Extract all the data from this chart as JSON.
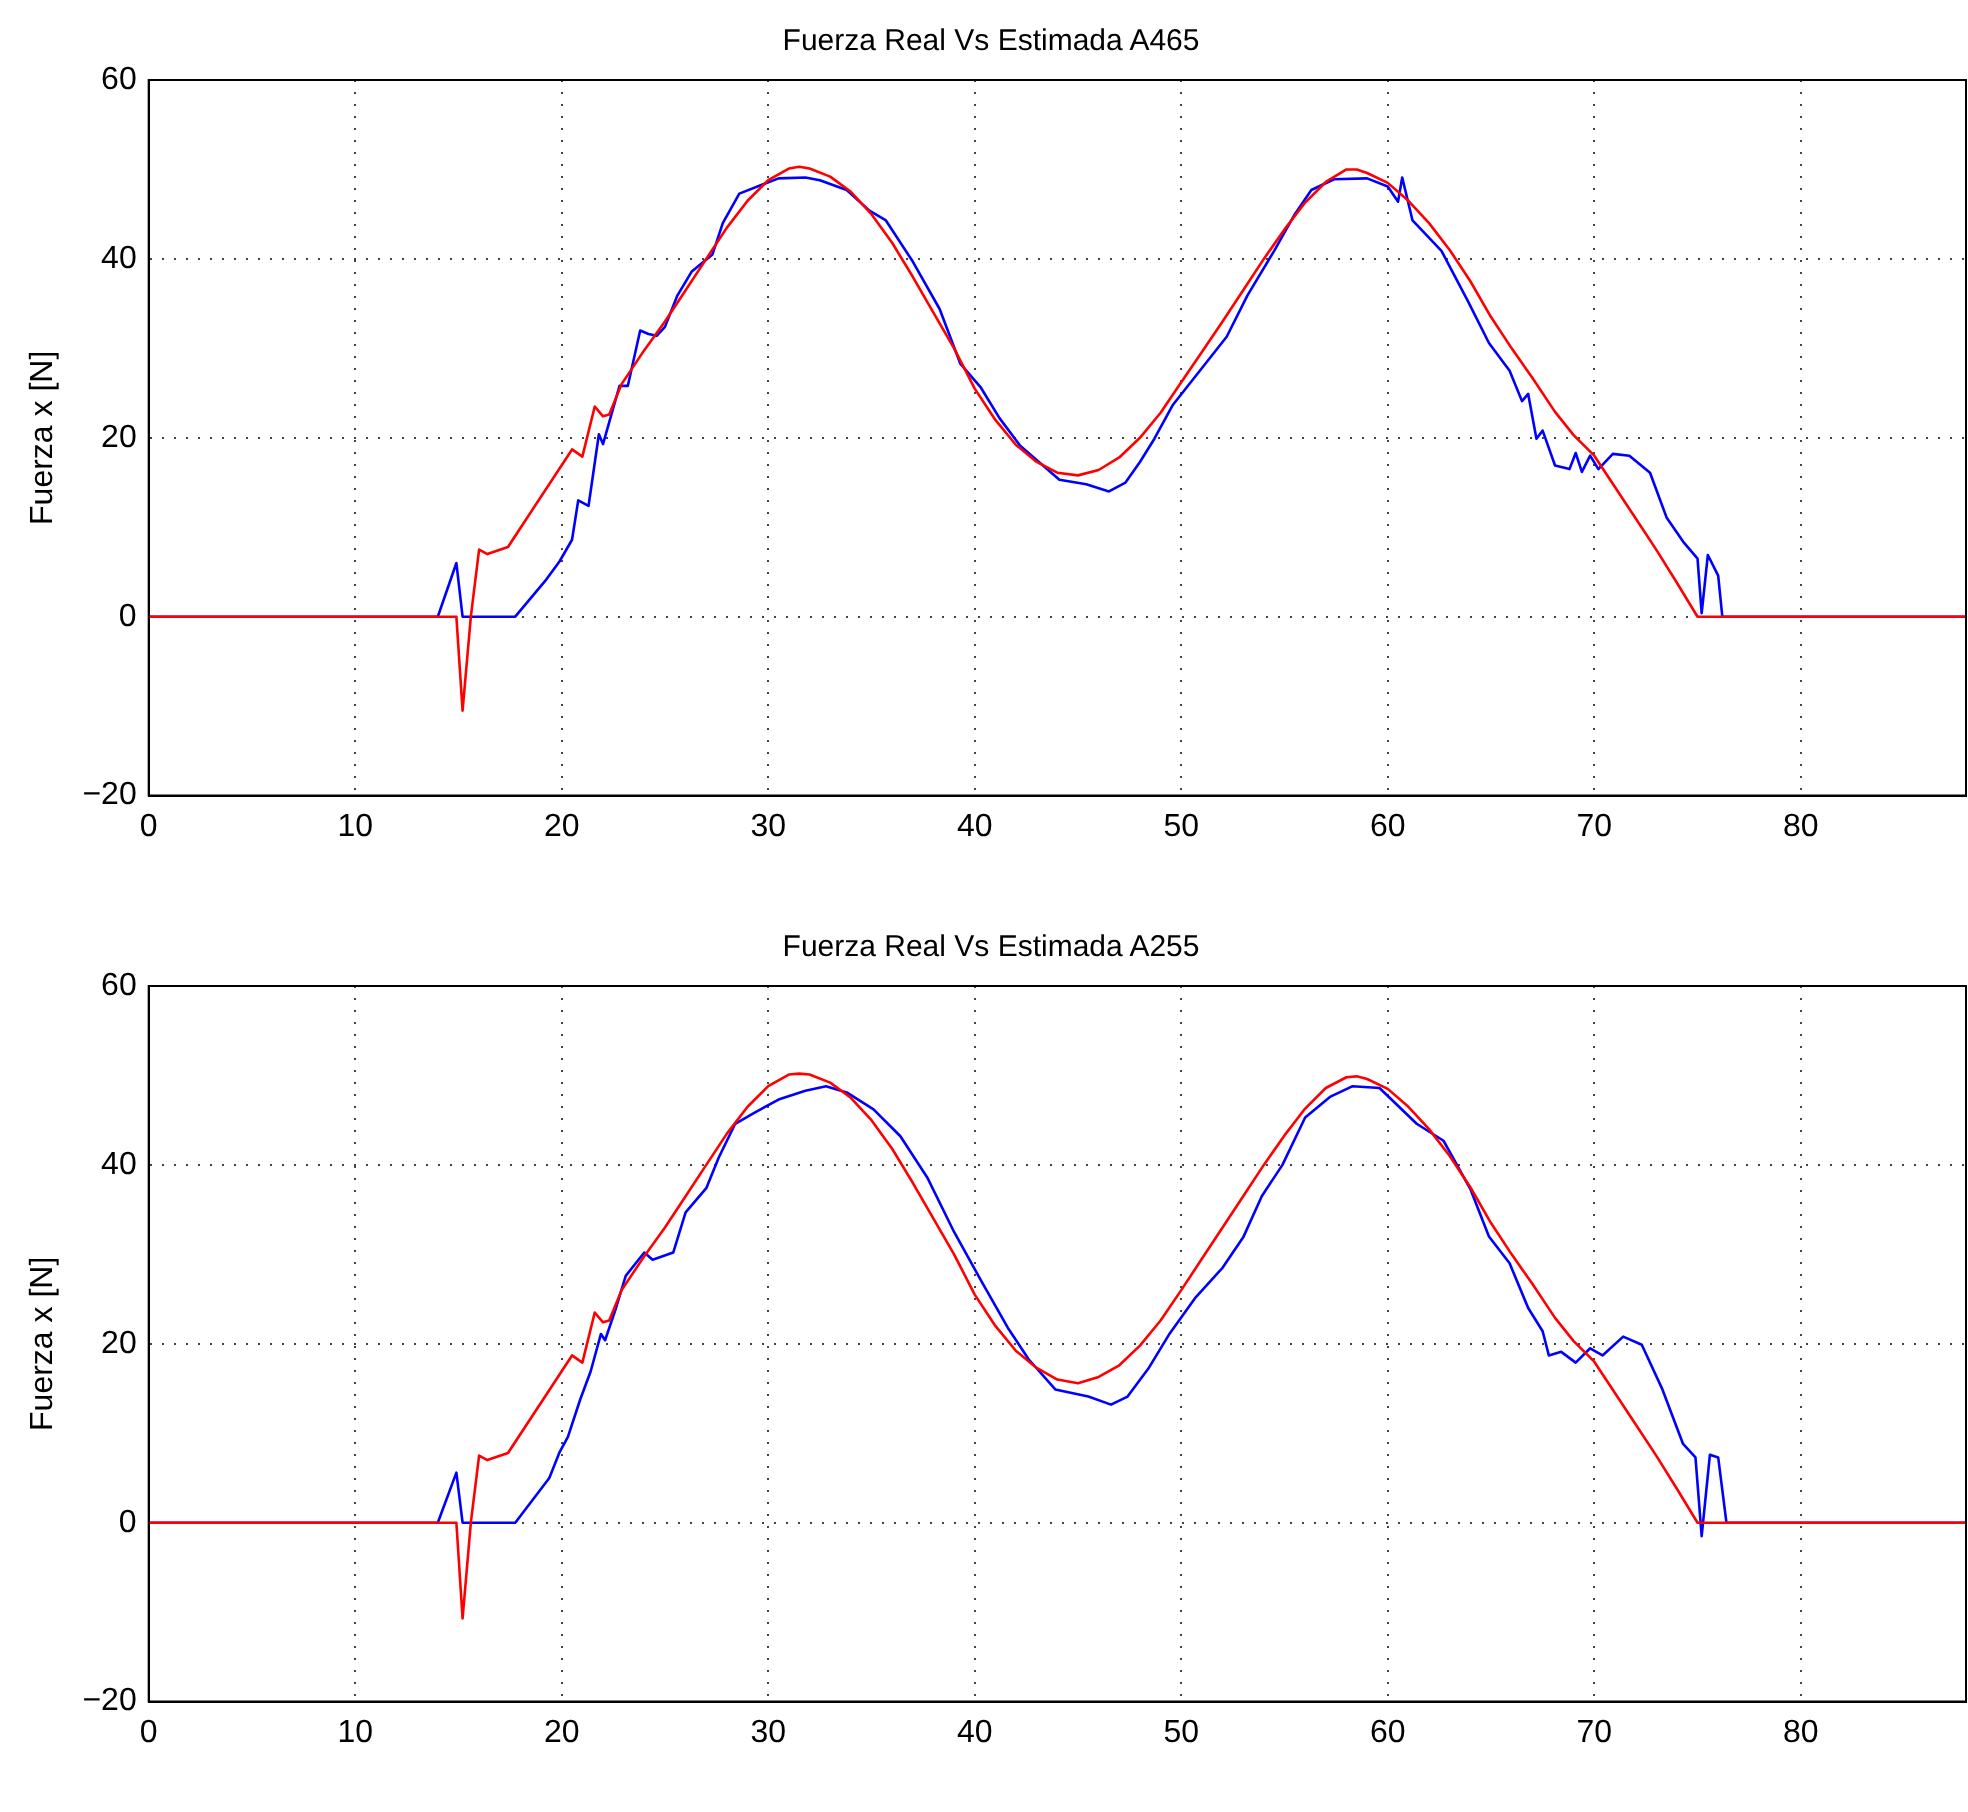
{
  "chart_data": [
    {
      "type": "line",
      "title": "Fuerza Real Vs Estimada A465",
      "ylabel": "Fuerza x [N]",
      "xlim": [
        0,
        88
      ],
      "xticks": [
        0,
        10,
        20,
        30,
        40,
        50,
        60,
        70,
        80
      ],
      "ylim": [
        -20,
        60
      ],
      "yticks": [
        -20,
        0,
        20,
        40,
        60
      ],
      "grid": true,
      "legend": false,
      "marker": "none",
      "line_style": "solid",
      "series": [
        {
          "color": "#ff0000",
          "x": [
            0,
            14.9,
            15.2,
            15.6,
            16.0,
            16.4,
            17.4,
            20.5,
            21.0,
            21.6,
            22.0,
            22.3,
            22.9,
            24,
            25,
            26,
            27,
            28,
            29,
            30,
            31,
            31.5,
            32,
            33,
            34,
            35,
            36,
            37,
            38,
            39,
            40,
            41,
            42,
            43,
            44,
            45,
            46,
            47,
            48,
            49,
            50,
            51,
            52,
            53,
            54,
            55,
            56,
            57,
            58,
            58.5,
            59,
            60,
            61,
            62,
            63,
            64,
            65,
            66,
            67,
            68.1,
            69,
            70,
            71,
            72,
            73,
            74,
            75,
            88
          ],
          "values": [
            0,
            0,
            -10.5,
            0,
            7.5,
            7,
            7.8,
            18.7,
            17.9,
            23.5,
            22.4,
            22.6,
            26,
            29.8,
            33,
            36.5,
            40,
            43.5,
            46.5,
            48.8,
            50.1,
            50.3,
            50.1,
            49.2,
            47.5,
            45,
            41.8,
            38,
            34,
            30,
            25.5,
            22,
            19.2,
            17.3,
            16.1,
            15.8,
            16.4,
            17.8,
            20,
            22.8,
            26.2,
            29.6,
            33,
            36.5,
            40,
            43.3,
            46.3,
            48.6,
            50,
            50,
            49.6,
            48.5,
            46.5,
            44,
            41,
            37.5,
            33.5,
            30,
            26.7,
            22.9,
            20.3,
            18,
            14.5,
            11,
            7.5,
            3.8,
            0,
            0
          ]
        },
        {
          "color": "#0000ff",
          "x": [
            0,
            14.0,
            14.9,
            15.2,
            17.75,
            19.2,
            19.9,
            20.5,
            20.8,
            21.3,
            21.8,
            22.0,
            22.8,
            23.2,
            23.8,
            24.2,
            24.6,
            25.0,
            25.6,
            26.3,
            27.3,
            27.8,
            28.6,
            29.6,
            30.5,
            31.8,
            32.5,
            33.8,
            34.9,
            35.7,
            37.0,
            38.3,
            39.3,
            40.3,
            41.2,
            42.2,
            43.5,
            44.1,
            45.4,
            46.5,
            47.3,
            48.0,
            48.7,
            49.6,
            50.9,
            52.2,
            53.2,
            54.5,
            55.5,
            56.3,
            57.4,
            59.0,
            60.0,
            60.5,
            60.7,
            61.2,
            62.6,
            63.9,
            64.9,
            65.9,
            66.5,
            66.8,
            67.2,
            67.5,
            68.1,
            68.8,
            69.1,
            69.4,
            69.8,
            70.2,
            70.9,
            71.7,
            72.7,
            73.5,
            74.3,
            75.0,
            75.2,
            75.5,
            76.0,
            76.2,
            88
          ],
          "values": [
            0,
            0,
            6,
            0,
            0,
            4,
            6.2,
            8.6,
            13,
            12.4,
            20.4,
            19.3,
            25.8,
            25.8,
            32,
            31.6,
            31.4,
            32.4,
            35.9,
            38.6,
            40.5,
            44,
            47.3,
            48.2,
            49,
            49.1,
            48.8,
            47.7,
            45.4,
            44.3,
            39.7,
            34.4,
            28.3,
            25.6,
            22.2,
            19.1,
            16.5,
            15.3,
            14.8,
            14,
            15,
            17.3,
            19.9,
            23.7,
            27.5,
            31.3,
            35.9,
            40.9,
            45,
            47.7,
            48.9,
            49,
            48.1,
            46.4,
            49.1,
            44.3,
            40.9,
            35.2,
            30.6,
            27.5,
            24.1,
            24.9,
            19.9,
            20.8,
            16.9,
            16.5,
            18.3,
            16.2,
            18,
            16.5,
            18.2,
            18,
            16.1,
            11.1,
            8.4,
            6.5,
            0.4,
            6.9,
            4.6,
            0,
            0
          ]
        }
      ]
    },
    {
      "type": "line",
      "title": "Fuerza Real Vs Estimada A255",
      "ylabel": "Fuerza x [N]",
      "xlim": [
        0,
        88
      ],
      "xticks": [
        0,
        10,
        20,
        30,
        40,
        50,
        60,
        70,
        80
      ],
      "ylim": [
        -20,
        60
      ],
      "yticks": [
        -20,
        0,
        20,
        40,
        60
      ],
      "grid": true,
      "legend": false,
      "marker": "none",
      "line_style": "solid",
      "series": [
        {
          "color": "#ff0000",
          "x": [
            0,
            14.9,
            15.2,
            15.6,
            16.0,
            16.4,
            17.4,
            20.5,
            21.0,
            21.6,
            22.0,
            22.3,
            22.9,
            24,
            25,
            26,
            27,
            28,
            29,
            30,
            31,
            31.5,
            32,
            33,
            34,
            35,
            36,
            37,
            38,
            39,
            40,
            41,
            42,
            43,
            44,
            45,
            46,
            47,
            48,
            49,
            50,
            51,
            52,
            53,
            54,
            55,
            56,
            57,
            58,
            58.5,
            59,
            60,
            61,
            62,
            63,
            64,
            65,
            66,
            67,
            68.1,
            69,
            70,
            71,
            72,
            73,
            74,
            75,
            88
          ],
          "values": [
            0,
            0,
            -10.7,
            0,
            7.5,
            7,
            7.8,
            18.7,
            17.9,
            23.5,
            22.4,
            22.6,
            26,
            29.8,
            33,
            36.5,
            40,
            43.5,
            46.5,
            48.8,
            50.1,
            50.2,
            50.1,
            49.2,
            47.5,
            45,
            41.8,
            38,
            34,
            30,
            25.5,
            22,
            19.2,
            17.3,
            16,
            15.6,
            16.3,
            17.6,
            19.8,
            22.6,
            26,
            29.5,
            33,
            36.5,
            40,
            43.3,
            46.3,
            48.6,
            49.8,
            49.9,
            49.6,
            48.5,
            46.5,
            44,
            41,
            37.5,
            33.5,
            30,
            26.7,
            22.9,
            20.3,
            18,
            14.5,
            11,
            7.5,
            3.8,
            0,
            0
          ]
        },
        {
          "color": "#0000ff",
          "x": [
            0,
            14.0,
            14.9,
            15.2,
            17.75,
            19.4,
            19.9,
            20.3,
            20.9,
            21.4,
            21.9,
            22.1,
            22.6,
            23.1,
            24.0,
            24.4,
            25.4,
            26.0,
            27.0,
            27.6,
            28.4,
            29.3,
            30.5,
            31.8,
            32.8,
            33.8,
            35.1,
            36.4,
            37.7,
            39.0,
            40.3,
            41.6,
            42.6,
            43.9,
            45.5,
            46.6,
            47.4,
            48.4,
            49.4,
            50.7,
            52.0,
            53.0,
            53.9,
            54.9,
            56.0,
            57.2,
            58.3,
            59.6,
            61.4,
            62.7,
            64.0,
            64.9,
            65.9,
            66.8,
            67.5,
            67.8,
            68.4,
            69.1,
            69.8,
            70.4,
            71.4,
            72.3,
            73.3,
            74.3,
            74.9,
            75.2,
            75.6,
            76.0,
            76.4,
            88
          ],
          "values": [
            0,
            0,
            5.6,
            0,
            0,
            5,
            7.9,
            9.6,
            13.8,
            16.9,
            21.1,
            20.4,
            23.8,
            27.6,
            30.2,
            29.4,
            30.2,
            34.7,
            37.4,
            40.8,
            44.6,
            45.8,
            47.3,
            48.3,
            48.8,
            48.1,
            46.2,
            43.2,
            38.6,
            32.5,
            27.1,
            21.8,
            18.3,
            14.9,
            14.1,
            13.2,
            14.1,
            17.2,
            21,
            25.2,
            28.5,
            31.9,
            36.5,
            40,
            45.3,
            47.6,
            48.8,
            48.6,
            44.6,
            42.7,
            37.3,
            32,
            29,
            24,
            21.4,
            18.7,
            19.1,
            17.9,
            19.5,
            18.7,
            20.8,
            19.9,
            14.9,
            8.8,
            7.3,
            -1.5,
            7.6,
            7.3,
            0,
            0
          ]
        }
      ]
    }
  ]
}
